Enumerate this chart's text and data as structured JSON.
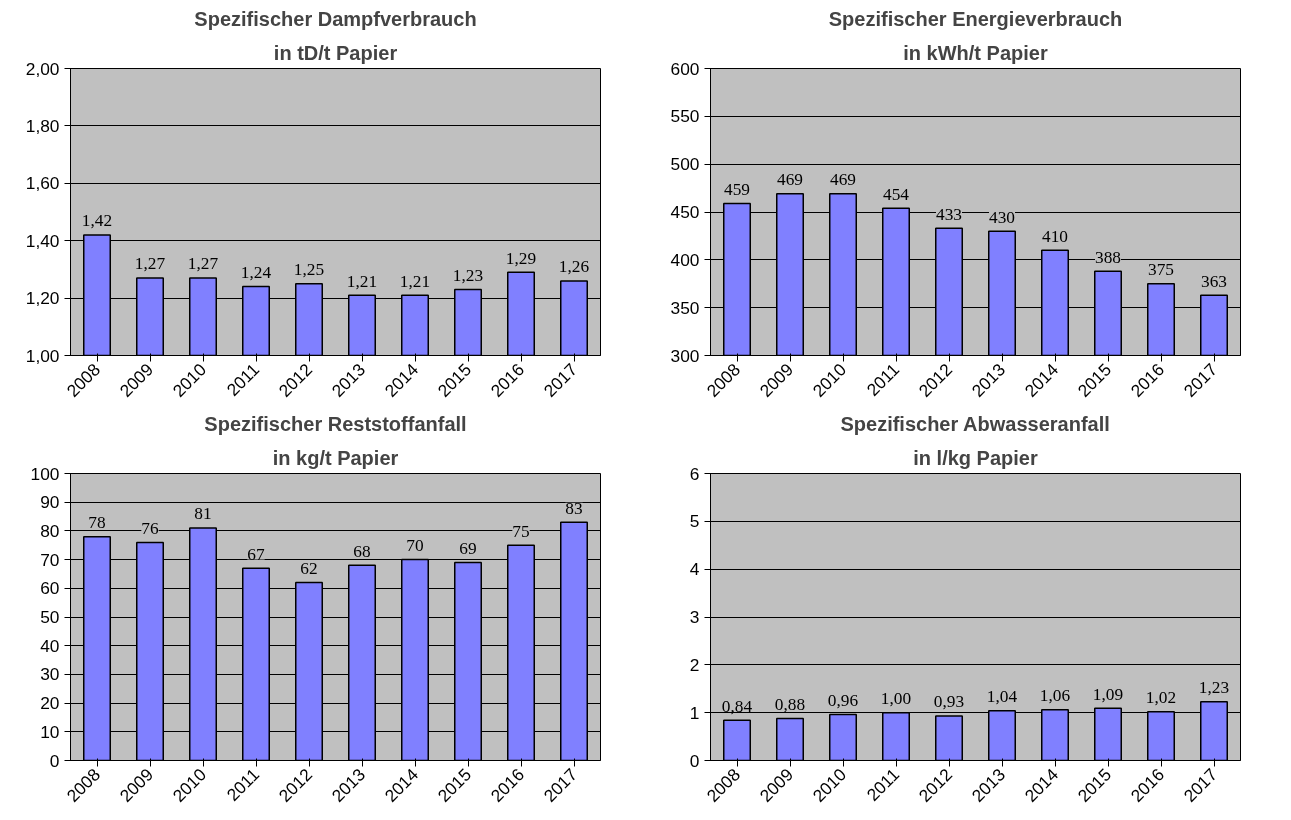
{
  "chart_data": [
    {
      "type": "bar",
      "title": "Spezifischer Dampfverbrauch",
      "subtitle": "in tD/t Papier",
      "categories": [
        "2008",
        "2009",
        "2010",
        "2011",
        "2012",
        "2013",
        "2014",
        "2015",
        "2016",
        "2017"
      ],
      "values": [
        1.42,
        1.27,
        1.27,
        1.24,
        1.25,
        1.21,
        1.21,
        1.23,
        1.29,
        1.26
      ],
      "value_labels": [
        "1,42",
        "1,27",
        "1,27",
        "1,24",
        "1,25",
        "1,21",
        "1,21",
        "1,23",
        "1,29",
        "1,26"
      ],
      "color": "#8080ff",
      "ylim": [
        1.0,
        2.0
      ],
      "yticks": [
        {
          "value": 1.0,
          "label": "1,00"
        },
        {
          "value": 1.2,
          "label": "1,20"
        },
        {
          "value": 1.4,
          "label": "1,40"
        },
        {
          "value": 1.6,
          "label": "1,60"
        },
        {
          "value": 1.8,
          "label": "1,80"
        },
        {
          "value": 2.0,
          "label": "2,00"
        }
      ],
      "grid": "y"
    },
    {
      "type": "bar",
      "title": "Spezifischer Energieverbrauch",
      "subtitle": "in kWh/t Papier",
      "categories": [
        "2008",
        "2009",
        "2010",
        "2011",
        "2012",
        "2013",
        "2014",
        "2015",
        "2016",
        "2017"
      ],
      "values": [
        459,
        469,
        469,
        454,
        433,
        430,
        410,
        388,
        375,
        363
      ],
      "data_labels": true,
      "color": "#8080ff",
      "ylim": [
        300,
        600
      ],
      "yticks": [
        300,
        350,
        400,
        450,
        500,
        550,
        600
      ],
      "grid": "y"
    },
    {
      "type": "bar",
      "title": "Spezifischer Reststoffanfall",
      "subtitle": "in kg/t Papier",
      "categories": [
        "2008",
        "2009",
        "2010",
        "2011",
        "2012",
        "2013",
        "2014",
        "2015",
        "2016",
        "2017"
      ],
      "values": [
        78,
        76,
        81,
        67,
        62,
        68,
        70,
        69,
        75,
        83
      ],
      "data_labels": true,
      "color": "#8080ff",
      "ylim": [
        0,
        100
      ],
      "yticks": [
        0,
        10,
        20,
        30,
        40,
        50,
        60,
        70,
        80,
        90,
        100
      ],
      "grid": "y"
    },
    {
      "type": "bar",
      "title": "Spezifischer Abwasseranfall",
      "subtitle": "in l/kg Papier",
      "categories": [
        "2008",
        "2009",
        "2010",
        "2011",
        "2012",
        "2013",
        "2014",
        "2015",
        "2016",
        "2017"
      ],
      "values": [
        0.84,
        0.88,
        0.96,
        1.0,
        0.93,
        1.04,
        1.06,
        1.09,
        1.02,
        1.23
      ],
      "value_labels": [
        "0,84",
        "0,88",
        "0,96",
        "1,00",
        "0,93",
        "1,04",
        "1,06",
        "1,09",
        "1,02",
        "1,23"
      ],
      "color": "#8080ff",
      "ylim": [
        0,
        6
      ],
      "yticks": [
        0,
        1,
        2,
        3,
        4,
        5,
        6
      ],
      "grid": "y"
    }
  ]
}
